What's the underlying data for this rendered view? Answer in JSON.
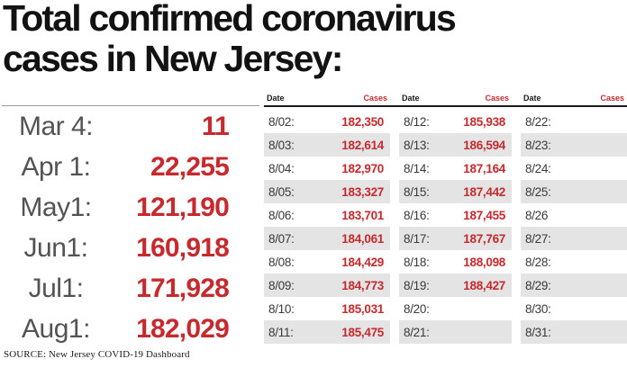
{
  "title": {
    "line1": "Total confirmed coronavirus",
    "line2": "cases in New Jersey:"
  },
  "milestones": [
    {
      "date": "Mar 4:",
      "value": "11"
    },
    {
      "date": "Apr 1:",
      "value": "22,255"
    },
    {
      "date": "May1:",
      "value": "121,190"
    },
    {
      "date": "Jun1:",
      "value": "160,918"
    },
    {
      "date": "Jul1:",
      "value": "171,928"
    },
    {
      "date": "Aug1:",
      "value": "182,029"
    }
  ],
  "table": {
    "header": {
      "date_label": "Date",
      "cases_label": "Cases"
    },
    "columns": [
      {
        "rows": [
          {
            "date": "8/02:",
            "cases": "182,350"
          },
          {
            "date": "8/03:",
            "cases": "182,614"
          },
          {
            "date": "8/04:",
            "cases": "182,970"
          },
          {
            "date": "8/05:",
            "cases": "183,327"
          },
          {
            "date": "8/06:",
            "cases": "183,701"
          },
          {
            "date": "8/07:",
            "cases": "184,061"
          },
          {
            "date": "8/08:",
            "cases": "184,429"
          },
          {
            "date": "8/09:",
            "cases": "184,773"
          },
          {
            "date": "8/10:",
            "cases": "185,031"
          },
          {
            "date": "8/11:",
            "cases": "185,475"
          }
        ]
      },
      {
        "rows": [
          {
            "date": "8/12:",
            "cases": "185,938"
          },
          {
            "date": "8/13:",
            "cases": "186,594"
          },
          {
            "date": "8/14:",
            "cases": "187,164"
          },
          {
            "date": "8/15:",
            "cases": "187,442"
          },
          {
            "date": "8/16:",
            "cases": "187,455"
          },
          {
            "date": "8/17:",
            "cases": "187,767"
          },
          {
            "date": "8/18:",
            "cases": "188,098"
          },
          {
            "date": "8/19:",
            "cases": "188,427"
          },
          {
            "date": "8/20:",
            "cases": ""
          },
          {
            "date": "8/21:",
            "cases": ""
          }
        ]
      },
      {
        "rows": [
          {
            "date": "8/22:",
            "cases": ""
          },
          {
            "date": "8/23:",
            "cases": ""
          },
          {
            "date": "8/24:",
            "cases": ""
          },
          {
            "date": "8/25:",
            "cases": ""
          },
          {
            "date": "8/26",
            "cases": ""
          },
          {
            "date": "8/27:",
            "cases": ""
          },
          {
            "date": "8/28:",
            "cases": ""
          },
          {
            "date": "8/29:",
            "cases": ""
          },
          {
            "date": "8/30:",
            "cases": ""
          },
          {
            "date": "8/31:",
            "cases": ""
          }
        ]
      }
    ]
  },
  "source": "SOURCE: New Jersey COVID-19 Dashboard",
  "colors": {
    "accent_red": "#c62a2e",
    "row_alt_bg": "#e4e4e4",
    "title_color": "#121212",
    "milestone_date_color": "#535353"
  },
  "chart_data": {
    "type": "table",
    "title": "Total confirmed coronavirus cases in New Jersey:",
    "milestones": {
      "dates": [
        "Mar 4",
        "Apr 1",
        "May 1",
        "Jun 1",
        "Jul 1",
        "Aug 1"
      ],
      "values": [
        11,
        22255,
        121190,
        160918,
        171928,
        182029
      ]
    },
    "daily_august": {
      "dates": [
        "8/02",
        "8/03",
        "8/04",
        "8/05",
        "8/06",
        "8/07",
        "8/08",
        "8/09",
        "8/10",
        "8/11",
        "8/12",
        "8/13",
        "8/14",
        "8/15",
        "8/16",
        "8/17",
        "8/18",
        "8/19"
      ],
      "values": [
        182350,
        182614,
        182970,
        183327,
        183701,
        184061,
        184429,
        184773,
        185031,
        185475,
        185938,
        186594,
        187164,
        187442,
        187455,
        187767,
        188098,
        188427
      ],
      "empty_dates": [
        "8/20",
        "8/21",
        "8/22",
        "8/23",
        "8/24",
        "8/25",
        "8/26",
        "8/27",
        "8/28",
        "8/29",
        "8/30",
        "8/31"
      ]
    }
  }
}
